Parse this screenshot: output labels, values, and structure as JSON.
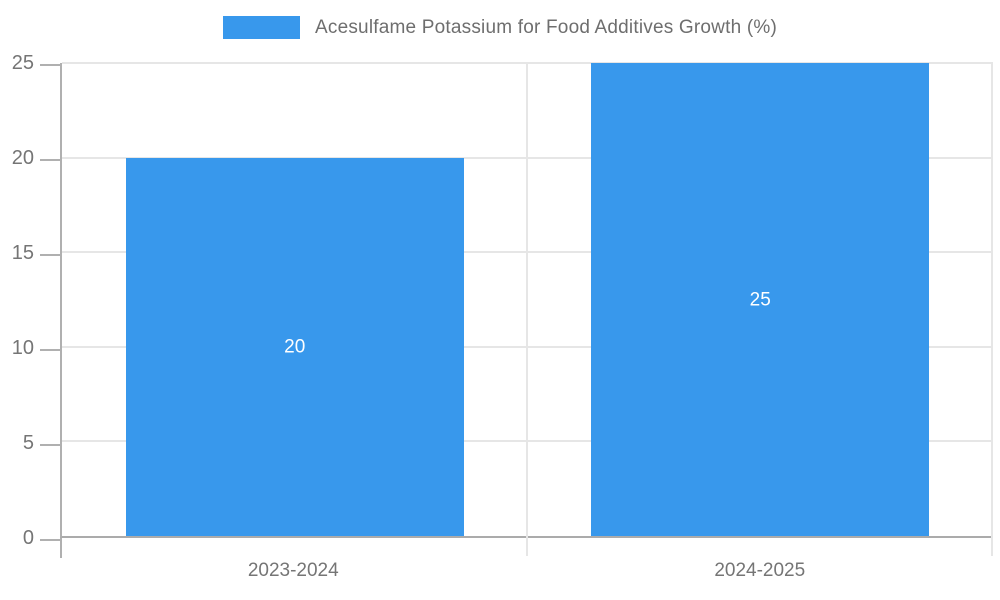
{
  "legend": {
    "label": "Acesulfame Potassium for Food Additives Growth (%)"
  },
  "colors": {
    "bar": "#3898ec",
    "grid": "#e6e6e6",
    "axis": "#b0b0b0",
    "tick_text": "#757575",
    "bar_label_text": "#ffffff",
    "background": "#ffffff"
  },
  "chart_data": {
    "type": "bar",
    "title": "Acesulfame Potassium for Food Additives Growth (%)",
    "categories": [
      "2023-2024",
      "2024-2025"
    ],
    "values": [
      20,
      25
    ],
    "bar_labels": [
      "20",
      "25"
    ],
    "xlabel": "",
    "ylabel": "",
    "ylim": [
      0,
      25
    ],
    "yticks": [
      0,
      5,
      10,
      15,
      20,
      25
    ],
    "grid": true,
    "legend_position": "top",
    "bar_band_fraction": 0.727
  }
}
